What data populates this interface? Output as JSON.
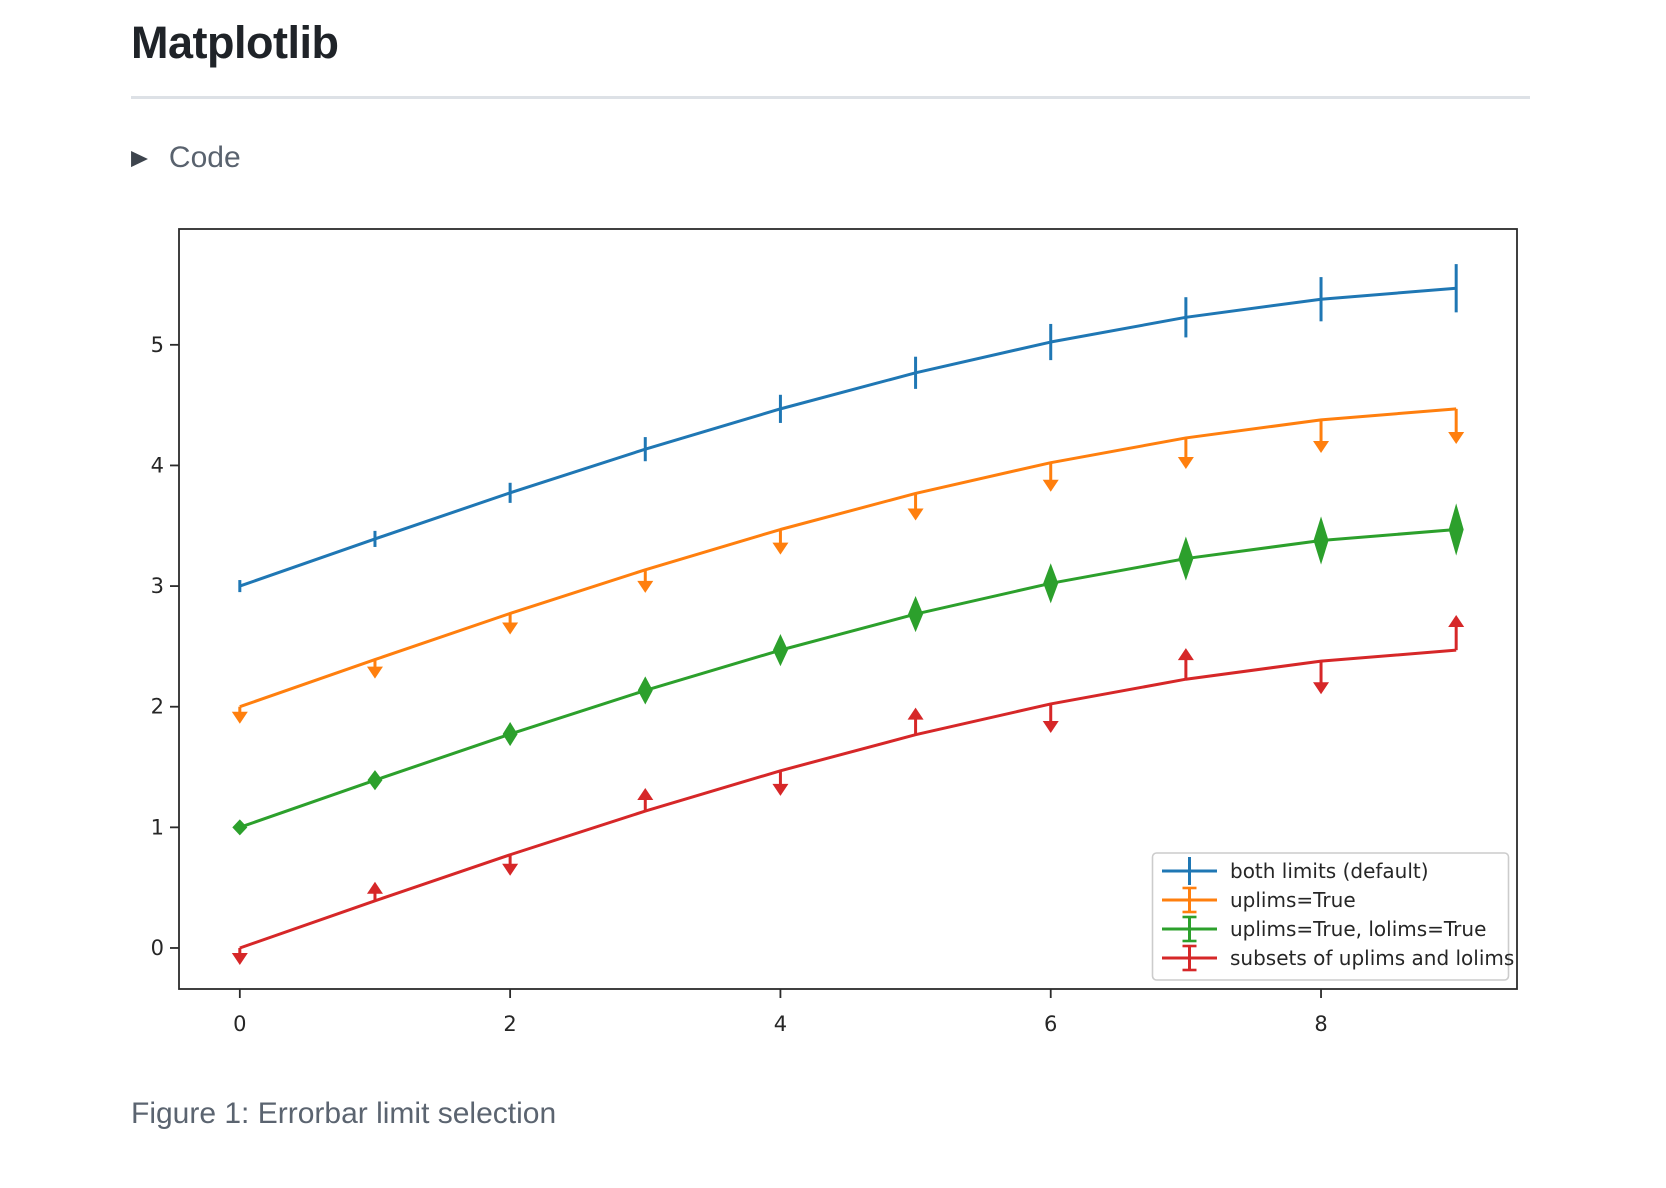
{
  "page": {
    "title": "Matplotlib",
    "code_toggle": {
      "label": "Code",
      "icon": "triangle-right"
    },
    "caption": "Figure 1: Errorbar limit selection"
  },
  "chart_data": {
    "type": "line",
    "title": "",
    "xlabel": "",
    "ylabel": "",
    "x": [
      0,
      1,
      2,
      3,
      4,
      5,
      6,
      7,
      8,
      9
    ],
    "xlim": [
      -0.45,
      9.45
    ],
    "ylim": [
      -0.34,
      5.96
    ],
    "xticks": [
      0,
      2,
      4,
      6,
      8
    ],
    "yticks": [
      0,
      1,
      2,
      3,
      4,
      5
    ],
    "grid": false,
    "legend_position": "lower right",
    "yerr": [
      0.05,
      0.0667,
      0.0833,
      0.1,
      0.1167,
      0.1333,
      0.15,
      0.1667,
      0.1833,
      0.2
    ],
    "series": [
      {
        "name": "both limits (default)",
        "color": "#1f77b4",
        "limit_style": "both",
        "values": [
          3.0,
          3.391,
          3.773,
          4.135,
          4.469,
          4.768,
          5.023,
          5.228,
          5.378,
          5.469
        ]
      },
      {
        "name": "uplims=True",
        "color": "#ff7f0e",
        "limit_style": "uplims",
        "values": [
          2.0,
          2.391,
          2.773,
          3.135,
          3.469,
          3.768,
          4.023,
          4.228,
          4.378,
          4.469
        ]
      },
      {
        "name": "uplims=True, lolims=True",
        "color": "#2ca02c",
        "limit_style": "uplims+lolims",
        "values": [
          1.0,
          1.391,
          1.773,
          2.135,
          2.469,
          2.768,
          3.023,
          3.228,
          3.378,
          3.469
        ]
      },
      {
        "name": "subsets of uplims and lolims",
        "color": "#d62728",
        "limit_style": "alternating",
        "uplims": [
          true,
          false,
          true,
          false,
          true,
          false,
          true,
          false,
          true,
          false
        ],
        "lolims": [
          false,
          true,
          false,
          true,
          false,
          true,
          false,
          true,
          false,
          true
        ],
        "values": [
          0.0,
          0.391,
          0.773,
          1.135,
          1.469,
          1.768,
          2.023,
          2.228,
          2.378,
          2.469
        ]
      }
    ]
  }
}
